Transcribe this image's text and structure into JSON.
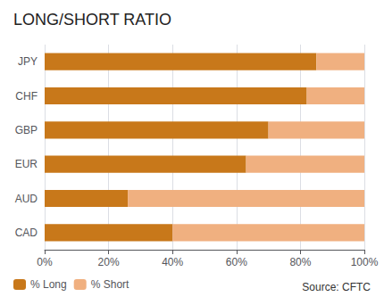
{
  "chart_data": {
    "type": "bar",
    "orientation": "horizontal",
    "stacked": true,
    "title": "LONG/SHORT RATIO",
    "categories": [
      "JPY",
      "CHF",
      "GBP",
      "EUR",
      "AUD",
      "CAD"
    ],
    "series": [
      {
        "name": "% Long",
        "color": "#C8781A",
        "values": [
          85,
          82,
          70,
          63,
          26,
          40
        ]
      },
      {
        "name": "% Short",
        "color": "#F0B080",
        "values": [
          15,
          18,
          30,
          37,
          74,
          60
        ]
      }
    ],
    "xlim": [
      0,
      100
    ],
    "xticks": [
      {
        "value": 0,
        "label": "0%"
      },
      {
        "value": 20,
        "label": "20%"
      },
      {
        "value": 40,
        "label": "40%"
      },
      {
        "value": 60,
        "label": "60%"
      },
      {
        "value": 80,
        "label": "80%"
      },
      {
        "value": 100,
        "label": "100%"
      }
    ],
    "grid": true,
    "legend": "bottom",
    "annotations": [
      "Source: CFTC"
    ]
  }
}
